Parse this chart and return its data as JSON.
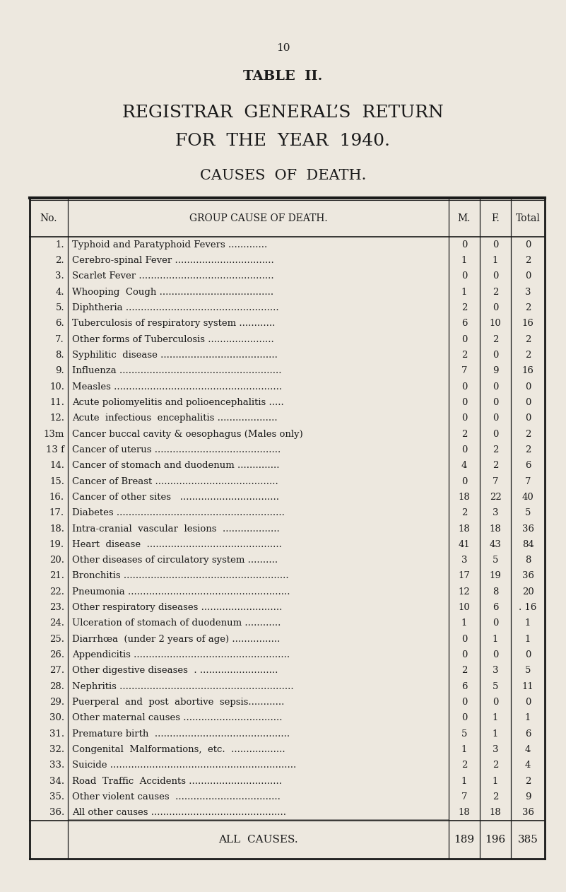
{
  "page_number": "10",
  "title_line1": "TABLE  II.",
  "title_line2": "REGISTRAR  GENERAL’S  RETURN",
  "title_line3": "FOR  THE  YEAR  1940.",
  "title_line4": "CAUSES  OF  DEATH.",
  "col_headers": [
    "No.",
    "GROUP CAUSE OF DEATH.",
    "M.",
    "F.",
    "Total"
  ],
  "rows": [
    [
      "1.",
      "Typhoid and Paratyphoid Fevers .............",
      "0",
      "0",
      "0"
    ],
    [
      "2.",
      "Cerebro-spinal Fever .................................",
      "1",
      "1",
      "2"
    ],
    [
      "3.",
      "Scarlet Fever .............................................",
      "0",
      "0",
      "0"
    ],
    [
      "4.",
      "Whooping  Cough ......................................",
      "1",
      "2",
      "3"
    ],
    [
      "5.",
      "Diphtheria ...................................................",
      "2",
      "0",
      "2"
    ],
    [
      "6.",
      "Tuberculosis of respiratory system ............",
      "6",
      "10",
      "16"
    ],
    [
      "7.",
      "Other forms of Tuberculosis ......................",
      "0",
      "2",
      "2"
    ],
    [
      "8.",
      "Syphilitic  disease .......................................",
      "2",
      "0",
      "2"
    ],
    [
      "9.",
      "Influenza ......................................................",
      "7",
      "9",
      "16"
    ],
    [
      "10.",
      "Measles ........................................................",
      "0",
      "0",
      "0"
    ],
    [
      "11.",
      "Acute poliomyelitis and polioencephalitis .....",
      "0",
      "0",
      "0"
    ],
    [
      "12.",
      "Acute  infectious  encephalitis ....................",
      "0",
      "0",
      "0"
    ],
    [
      "13m",
      "Cancer buccal cavity & oesophagus (Males only)",
      "2",
      "0",
      "2"
    ],
    [
      "13 f",
      "Cancer of uterus ..........................................",
      "0",
      "2",
      "2"
    ],
    [
      "14.",
      "Cancer of stomach and duodenum ..............",
      "4",
      "2",
      "6"
    ],
    [
      "15.",
      "Cancer of Breast .........................................",
      "0",
      "7",
      "7"
    ],
    [
      "16.",
      "Cancer of other sites   .................................",
      "18",
      "22",
      "40"
    ],
    [
      "17.",
      "Diabetes ........................................................",
      "2",
      "3",
      "5"
    ],
    [
      "18.",
      "Intra-cranial  vascular  lesions  ...................",
      "18",
      "18",
      "36"
    ],
    [
      "19.",
      "Heart  disease  .............................................",
      "41",
      "43",
      "84"
    ],
    [
      "20.",
      "Other diseases of circulatory system ..........",
      "3",
      "5",
      "8"
    ],
    [
      "21.",
      "Bronchitis .......................................................",
      "17",
      "19",
      "36"
    ],
    [
      "22.",
      "Pneumonia ......................................................",
      "12",
      "8",
      "20"
    ],
    [
      "23.",
      "Other respiratory diseases ...........................",
      "10",
      "6",
      ". 16"
    ],
    [
      "24.",
      "Ulceration of stomach of duodenum ............",
      "1",
      "0",
      "1"
    ],
    [
      "25.",
      "Diarrhœa  (under 2 years of age) ................",
      "0",
      "1",
      "1"
    ],
    [
      "26.",
      "Appendicitis ....................................................",
      "0",
      "0",
      "0"
    ],
    [
      "27.",
      "Other digestive diseases  . ..........................",
      "2",
      "3",
      "5"
    ],
    [
      "28.",
      "Nephritis ..........................................................",
      "6",
      "5",
      "11"
    ],
    [
      "29.",
      "Puerperal  and  post  abortive  sepsis............",
      "0",
      "0",
      "0"
    ],
    [
      "30.",
      "Other maternal causes .................................",
      "0",
      "1",
      "1"
    ],
    [
      "31.",
      "Premature birth  .............................................",
      "5",
      "1",
      "6"
    ],
    [
      "32.",
      "Congenital  Malformations,  etc.  ..................",
      "1",
      "3",
      "4"
    ],
    [
      "33.",
      "Suicide ..............................................................",
      "2",
      "2",
      "4"
    ],
    [
      "34.",
      "Road  Traffic  Accidents ...............................",
      "1",
      "1",
      "2"
    ],
    [
      "35.",
      "Other violent causes  ...................................",
      "7",
      "2",
      "9"
    ],
    [
      "36.",
      "All other causes .............................................",
      "18",
      "18",
      "36"
    ]
  ],
  "footer_row": [
    "",
    "ALL  CAUSES.",
    "189",
    "196",
    "385"
  ],
  "bg_color": "#ede8df",
  "text_color": "#1a1a1a",
  "line_color": "#1a1a1a"
}
